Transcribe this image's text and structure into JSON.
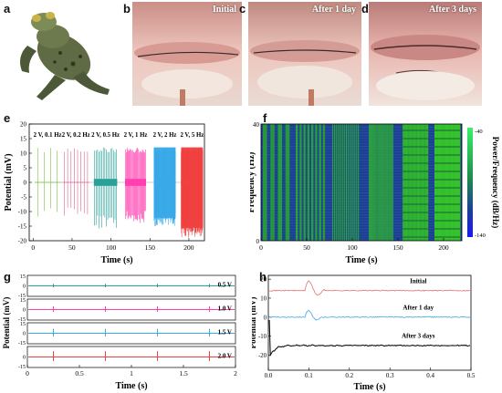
{
  "panels": {
    "a": {
      "label": "a"
    },
    "b": {
      "label": "b",
      "caption": "Initial"
    },
    "c": {
      "label": "c",
      "caption": "After 1 day"
    },
    "d": {
      "label": "d",
      "caption": "After 3 days"
    },
    "e": {
      "label": "e"
    },
    "f": {
      "label": "f"
    },
    "g": {
      "label": "g"
    },
    "h": {
      "label": "h"
    }
  },
  "colors": {
    "green": "#8dc95a",
    "pink": "#e07aa0",
    "teal": "#2aa198",
    "magenta": "#ff3fb0",
    "blue": "#39a9e8",
    "red": "#f04040",
    "black": "#111111",
    "tissue": "#e8b7b0",
    "tissue_dark": "#b8656a",
    "frog": "#5f6b45"
  },
  "chart_data": [
    {
      "id": "e",
      "type": "line",
      "xlabel": "Time (s)",
      "ylabel": "Potential (mV)",
      "xlim": [
        -5,
        220
      ],
      "ylim": [
        -20,
        20
      ],
      "xticks": [
        0,
        50,
        100,
        150,
        200
      ],
      "yticks": [
        -20,
        -15,
        -10,
        -5,
        0,
        5,
        10,
        15,
        20
      ],
      "segments": [
        {
          "name": "2 V, 0.1 Hz",
          "color": "#8dc95a",
          "x": [
            2,
            35
          ],
          "amp": [
            12,
            -12
          ],
          "pulses": 4,
          "style": "spikes"
        },
        {
          "name": "2 V, 0.2 Hz",
          "color": "#e07aa0",
          "x": [
            38,
            72
          ],
          "amp": [
            12,
            -12
          ],
          "pulses": 8,
          "style": "spikes"
        },
        {
          "name": "2 V, 0.5 Hz",
          "color": "#2aa198",
          "x": [
            78,
            108
          ],
          "amp": [
            12,
            -16
          ],
          "pulses": 16,
          "style": "dense"
        },
        {
          "name": "2 V, 1 Hz",
          "color": "#ff3fb0",
          "x": [
            118,
            145
          ],
          "amp": [
            12,
            -14
          ],
          "pulses": 26,
          "style": "dense"
        },
        {
          "name": "2 V, 2 Hz",
          "color": "#39a9e8",
          "x": [
            155,
            183
          ],
          "amp": [
            12,
            -15
          ],
          "pulses": 50,
          "style": "block"
        },
        {
          "name": "2 V, 5 Hz",
          "color": "#f04040",
          "x": [
            190,
            218
          ],
          "amp": [
            12,
            -19
          ],
          "pulses": 80,
          "style": "block"
        }
      ]
    },
    {
      "id": "f",
      "type": "heatmap",
      "xlabel": "Time (s)",
      "ylabel": "Frequency (Hz)",
      "colorbar_label": "Power/Frequency (dB/Hz)",
      "colorbar_ticks": [
        "-40",
        "-140"
      ],
      "xlim": [
        0,
        220
      ],
      "ylim": [
        0,
        40
      ],
      "xticks": [
        0,
        50,
        100,
        150,
        200
      ],
      "yticks_labeled": [
        0,
        40
      ],
      "columns": [
        {
          "x": [
            2,
            35
          ],
          "count": 4,
          "level": 0.45
        },
        {
          "x": [
            38,
            72
          ],
          "count": 8,
          "level": 0.5
        },
        {
          "x": [
            78,
            108
          ],
          "count": 16,
          "level": 0.55
        },
        {
          "x": [
            118,
            145
          ],
          "count": 26,
          "level": 0.65
        },
        {
          "x": [
            155,
            183
          ],
          "count": 50,
          "level": 0.7
        },
        {
          "x": [
            190,
            218
          ],
          "count": 80,
          "level": 0.85
        }
      ]
    },
    {
      "id": "g",
      "type": "line",
      "xlabel": "Time (s)",
      "ylabel": "Potential (mV)",
      "xlim": [
        0,
        2
      ],
      "xticks": [
        0,
        0.5,
        1,
        1.5,
        2
      ],
      "spike_times": [
        0.25,
        0.75,
        1.25,
        1.75
      ],
      "rows": [
        {
          "name": "0.5 V",
          "color": "#2aa198",
          "yticks": [
            15,
            0,
            -15
          ],
          "amp": 3
        },
        {
          "name": "1.0 V",
          "color": "#ff3fb0",
          "yticks": [
            15,
            0,
            -15
          ],
          "amp": 5
        },
        {
          "name": "1.5 V",
          "color": "#39a9e8",
          "yticks": [
            15,
            0,
            -15
          ],
          "amp": 7
        },
        {
          "name": "2.0 V",
          "color": "#f04040",
          "yticks": [
            0,
            -15
          ],
          "amp": 9
        }
      ]
    },
    {
      "id": "h",
      "type": "line",
      "xlabel": "Time (s)",
      "ylabel": "Potential (mV)",
      "xlim": [
        0,
        0.5
      ],
      "ylim": [
        -28,
        22
      ],
      "xticks": [
        0.0,
        0.1,
        0.2,
        0.3,
        0.4,
        0.5
      ],
      "xticklabels": [
        "0.0",
        "0.1",
        "0.2",
        "0.3",
        "0.4",
        "0.5"
      ],
      "yticks": [
        -20,
        -10,
        0,
        10,
        20
      ],
      "series": [
        {
          "name": "Initial",
          "color": "#e07070",
          "baseline": 14
        },
        {
          "name": "After 1 day",
          "color": "#39a9e8",
          "baseline": 0
        },
        {
          "name": "After 3 days",
          "color": "#111111",
          "baseline": -15
        }
      ]
    }
  ]
}
